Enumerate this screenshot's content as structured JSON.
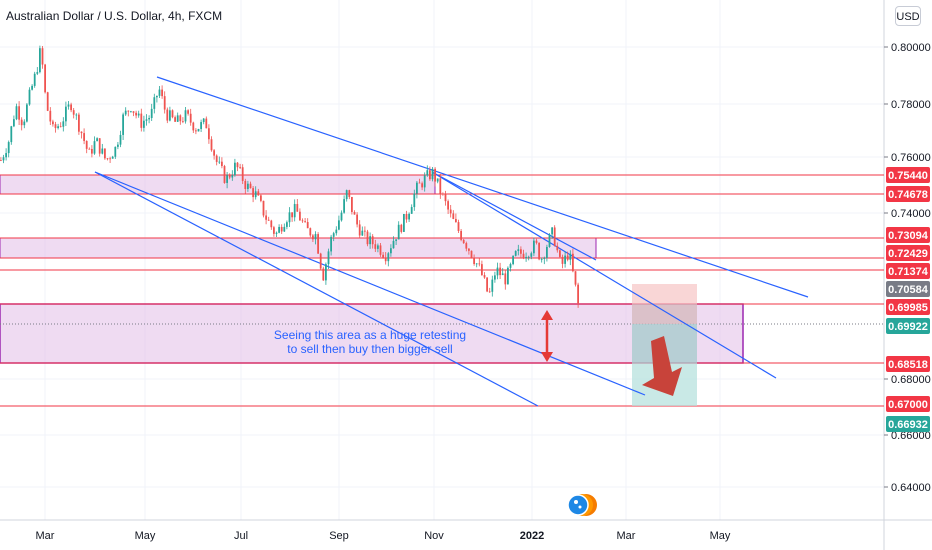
{
  "header": {
    "title": "Australian Dollar / U.S. Dollar, 4h, FXCM",
    "currency_label": "USD"
  },
  "annotation": {
    "line1": "Seeing this area as a huge retesting",
    "line2": "to sell then buy then bigger sell"
  },
  "colors": {
    "up": "#26a69a",
    "down": "#ef5350",
    "zone_fill": "#e1bee7",
    "zone_border": "#9c27b0",
    "level_line": "#f23645",
    "trend_line": "#2962ff",
    "current_price": "#26a69a",
    "arrow_big": "#c8433a",
    "arrow_small": "#e53935"
  },
  "chart_data": {
    "type": "candlestick",
    "x_ticks": [
      "Mar",
      "May",
      "Jul",
      "Sep",
      "Nov",
      "2022",
      "Mar",
      "May"
    ],
    "y_ticks": [
      "0.80000",
      "0.78000",
      "0.76000",
      "0.74000",
      "0.68000",
      "0.66000",
      "0.64000"
    ],
    "ylim": [
      0.628,
      0.806
    ],
    "price_path": [
      [
        0,
        0.76
      ],
      [
        8,
        0.768
      ],
      [
        15,
        0.782
      ],
      [
        22,
        0.775
      ],
      [
        30,
        0.788
      ],
      [
        35,
        0.795
      ],
      [
        40,
        0.805
      ],
      [
        45,
        0.783
      ],
      [
        52,
        0.772
      ],
      [
        60,
        0.775
      ],
      [
        70,
        0.783
      ],
      [
        80,
        0.772
      ],
      [
        88,
        0.762
      ],
      [
        95,
        0.768
      ],
      [
        105,
        0.76
      ],
      [
        115,
        0.765
      ],
      [
        122,
        0.777
      ],
      [
        130,
        0.782
      ],
      [
        140,
        0.775
      ],
      [
        150,
        0.778
      ],
      [
        158,
        0.789
      ],
      [
        165,
        0.779
      ],
      [
        175,
        0.775
      ],
      [
        185,
        0.778
      ],
      [
        195,
        0.773
      ],
      [
        205,
        0.775
      ],
      [
        215,
        0.76
      ],
      [
        225,
        0.752
      ],
      [
        235,
        0.758
      ],
      [
        245,
        0.75
      ],
      [
        255,
        0.746
      ],
      [
        265,
        0.737
      ],
      [
        275,
        0.73
      ],
      [
        285,
        0.737
      ],
      [
        295,
        0.74
      ],
      [
        305,
        0.732
      ],
      [
        315,
        0.73
      ],
      [
        322,
        0.713
      ],
      [
        330,
        0.728
      ],
      [
        340,
        0.738
      ],
      [
        346,
        0.747
      ],
      [
        355,
        0.735
      ],
      [
        365,
        0.728
      ],
      [
        375,
        0.726
      ],
      [
        385,
        0.722
      ],
      [
        395,
        0.73
      ],
      [
        405,
        0.737
      ],
      [
        415,
        0.748
      ],
      [
        425,
        0.753
      ],
      [
        432,
        0.755
      ],
      [
        440,
        0.747
      ],
      [
        450,
        0.737
      ],
      [
        460,
        0.73
      ],
      [
        470,
        0.723
      ],
      [
        480,
        0.715
      ],
      [
        488,
        0.705
      ],
      [
        495,
        0.716
      ],
      [
        505,
        0.712
      ],
      [
        515,
        0.722
      ],
      [
        525,
        0.723
      ],
      [
        535,
        0.726
      ],
      [
        540,
        0.72
      ],
      [
        545,
        0.725
      ],
      [
        552,
        0.731
      ],
      [
        560,
        0.717
      ],
      [
        568,
        0.723
      ],
      [
        574,
        0.71
      ],
      [
        578,
        0.7
      ]
    ],
    "price_labels": [
      {
        "value": "0.75440",
        "kind": "level"
      },
      {
        "value": "0.74678",
        "kind": "level"
      },
      {
        "value": "0.73094",
        "kind": "level"
      },
      {
        "value": "0.72429",
        "kind": "level"
      },
      {
        "value": "0.71374",
        "kind": "level"
      },
      {
        "value": "0.70584",
        "kind": "high"
      },
      {
        "value": "0.69985",
        "kind": "level"
      },
      {
        "value": "0.69922",
        "kind": "current"
      },
      {
        "value": "0.68518",
        "kind": "level"
      },
      {
        "value": "0.67000",
        "kind": "level"
      },
      {
        "value": "0.66932",
        "kind": "current"
      }
    ],
    "zones": [
      {
        "from": 0.7468,
        "to": 0.7544
      },
      {
        "from": 0.7243,
        "to": 0.7309
      },
      {
        "from": 0.6851,
        "to": 0.6998
      }
    ],
    "horizontal_levels": [
      0.7544,
      0.7468,
      0.7309,
      0.7243,
      0.7137,
      0.6998,
      0.6852,
      0.67
    ],
    "position_box": {
      "target": 0.67,
      "entry": 0.6998,
      "stop": 0.708
    }
  }
}
